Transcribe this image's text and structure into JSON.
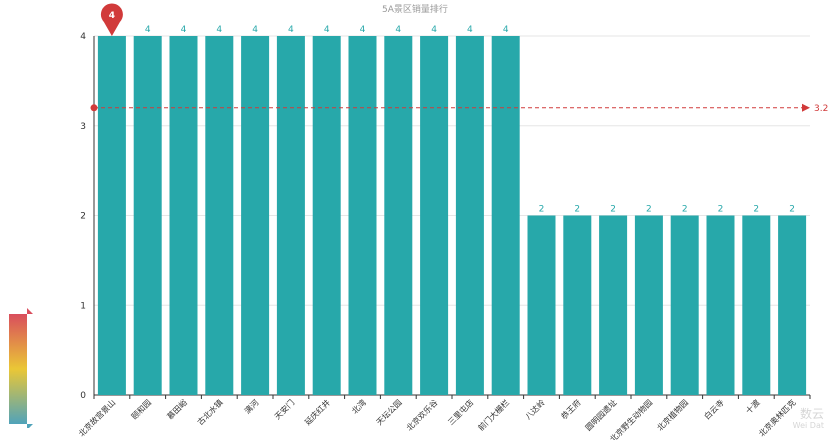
{
  "chart_data": {
    "type": "bar",
    "title": "5A景区销量排行",
    "categories": [
      "北京故宫景山",
      "颐和园",
      "慕田峪",
      "古北水镇",
      "漓河",
      "天安门",
      "延庆红井",
      "北湾",
      "天坛公园",
      "北京欢乐谷",
      "三里屯店",
      "前门大栅栏",
      "八达岭",
      "恭王府",
      "圆明园遗址",
      "北京野生动物园",
      "北京植物园",
      "白云寺",
      "十渡",
      "北京奥林匹克"
    ],
    "values": [
      4,
      4,
      4,
      4,
      4,
      4,
      4,
      4,
      4,
      4,
      4,
      4,
      2,
      2,
      2,
      2,
      2,
      2,
      2,
      2
    ],
    "ylim": [
      0,
      4
    ],
    "yticks": [
      0,
      1,
      2,
      3,
      4
    ],
    "xlabel": "",
    "ylabel": "",
    "markPoint": {
      "label": "4",
      "category_index": 0,
      "value": 4
    },
    "markLine": {
      "label": "3.2",
      "value": 3.2
    },
    "colors": {
      "bar": "#27a8aa",
      "mark": "#d13a3a",
      "grid": "#e6e6e6",
      "axis": "#333333",
      "label": "#27a8aa"
    },
    "visual_map": {
      "colors": [
        "#d94e5d",
        "#eac736",
        "#50a3ba"
      ]
    },
    "grid": true
  },
  "watermark": {
    "line1": "数云",
    "line2": "Wei Dat"
  }
}
